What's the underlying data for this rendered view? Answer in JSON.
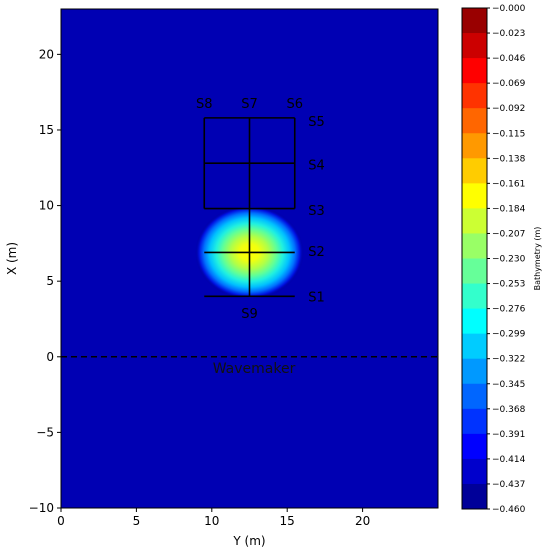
{
  "chart_data": {
    "type": "heatmap",
    "xlabel": "Y (m)",
    "ylabel": "X (m)",
    "xlim": [
      0,
      25
    ],
    "ylim": [
      -10,
      23
    ],
    "x_ticks": [
      "0",
      "5",
      "10",
      "15",
      "20"
    ],
    "y_ticks": [
      "−10",
      "−5",
      "0",
      "5",
      "10",
      "15",
      "20"
    ],
    "y_tick_values": [
      -10,
      -5,
      0,
      5,
      10,
      15,
      20
    ],
    "x_tick_values": [
      0,
      5,
      10,
      15,
      20
    ],
    "background_depth": -0.46,
    "colormap": "jet",
    "shoal": {
      "center_y": 12.5,
      "center_x": 6.9,
      "radius_y": 3.6,
      "radius_x": 3.1,
      "min_depth": -0.14
    },
    "colorbar": {
      "label": "Bathymetry (m)",
      "min": -0.46,
      "max": 0.0,
      "tick_labels": [
        "−0.000",
        "−0.023",
        "−0.046",
        "−0.069",
        "−0.092",
        "−0.115",
        "−0.138",
        "−0.161",
        "−0.184",
        "−0.207",
        "−0.230",
        "−0.253",
        "−0.276",
        "−0.299",
        "−0.322",
        "−0.345",
        "−0.368",
        "−0.391",
        "−0.414",
        "−0.437",
        "−0.460"
      ],
      "levels": 20
    },
    "wavemaker": {
      "label": "Wavemaker",
      "x": 0
    },
    "grid_lines": [
      {
        "y1": 9.5,
        "x1": 4.0,
        "y2": 15.5,
        "x2": 4.0
      },
      {
        "y1": 9.5,
        "x1": 6.9,
        "y2": 15.5,
        "x2": 6.9
      },
      {
        "y1": 9.5,
        "x1": 9.8,
        "y2": 15.5,
        "x2": 9.8
      },
      {
        "y1": 9.5,
        "x1": 12.8,
        "y2": 15.5,
        "x2": 12.8
      },
      {
        "y1": 9.5,
        "x1": 15.8,
        "y2": 15.5,
        "x2": 15.8
      },
      {
        "y1": 9.5,
        "x1": 9.8,
        "y2": 9.5,
        "x2": 15.8
      },
      {
        "y1": 12.5,
        "x1": 4.0,
        "y2": 12.5,
        "x2": 15.8
      },
      {
        "y1": 15.5,
        "x1": 9.8,
        "y2": 15.5,
        "x2": 15.8
      }
    ],
    "section_labels": [
      {
        "text": "S1",
        "y": 16.4,
        "x": 4.0
      },
      {
        "text": "S2",
        "y": 16.4,
        "x": 7.0
      },
      {
        "text": "S3",
        "y": 16.4,
        "x": 9.7
      },
      {
        "text": "S4",
        "y": 16.4,
        "x": 12.7
      },
      {
        "text": "S5",
        "y": 16.4,
        "x": 15.6
      },
      {
        "text": "S6",
        "y": 15.5,
        "x": 16.8
      },
      {
        "text": "S7",
        "y": 12.5,
        "x": 16.8
      },
      {
        "text": "S8",
        "y": 9.5,
        "x": 16.8
      },
      {
        "text": "S9",
        "y": 12.5,
        "x": 2.9
      }
    ]
  }
}
